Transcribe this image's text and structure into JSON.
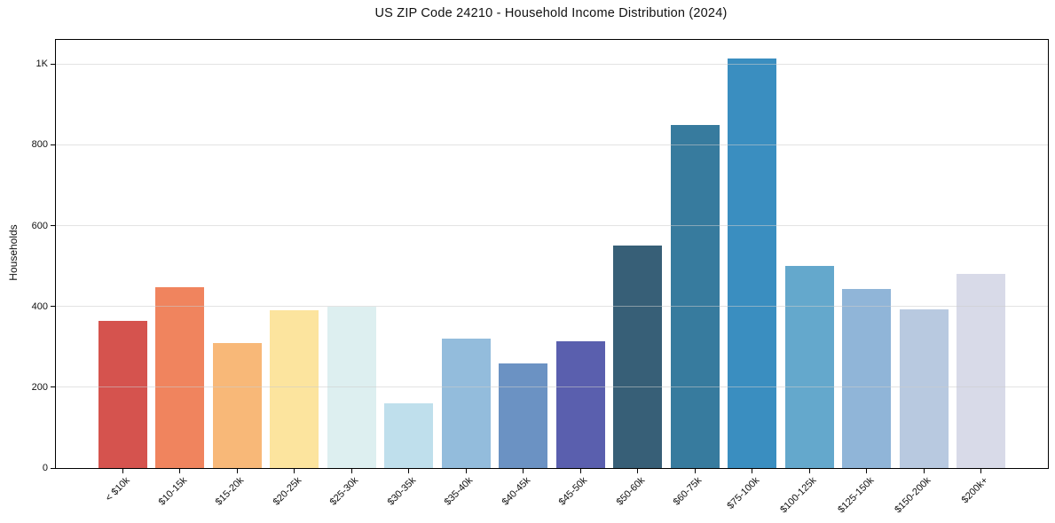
{
  "chart_data": {
    "type": "bar",
    "title": "US ZIP Code 24210 - Household Income Distribution (2024)",
    "xlabel": "",
    "ylabel": "Households",
    "ylim": [
      0,
      1060
    ],
    "grid": "horizontal-only, light gray, drawn over bars",
    "legend": "none",
    "y_ticks": [
      {
        "value": 0,
        "label": "0"
      },
      {
        "value": 200,
        "label": "200"
      },
      {
        "value": 400,
        "label": "400"
      },
      {
        "value": 600,
        "label": "600"
      },
      {
        "value": 800,
        "label": "800"
      },
      {
        "value": 1000,
        "label": "1K"
      }
    ],
    "categories": [
      "< $10k",
      "$10-15k",
      "$15-20k",
      "$20-25k",
      "$25-30k",
      "$30-35k",
      "$35-40k",
      "$40-45k",
      "$45-50k",
      "$50-60k",
      "$60-75k",
      "$75-100k",
      "$100-125k",
      "$125-150k",
      "$150-200k",
      "$200k+"
    ],
    "values": [
      365,
      448,
      310,
      390,
      399,
      160,
      320,
      260,
      314,
      550,
      850,
      1015,
      500,
      443,
      393,
      480
    ],
    "bar_colors": [
      "#d5534e",
      "#f0845e",
      "#f8b878",
      "#fce49e",
      "#ddeff0",
      "#bfdfec",
      "#93bcdc",
      "#6b92c3",
      "#5a5fae",
      "#375f77",
      "#377b9e",
      "#3a8ec0",
      "#64a8cc",
      "#90b5d8",
      "#b8c9e0",
      "#d8dae8"
    ]
  }
}
